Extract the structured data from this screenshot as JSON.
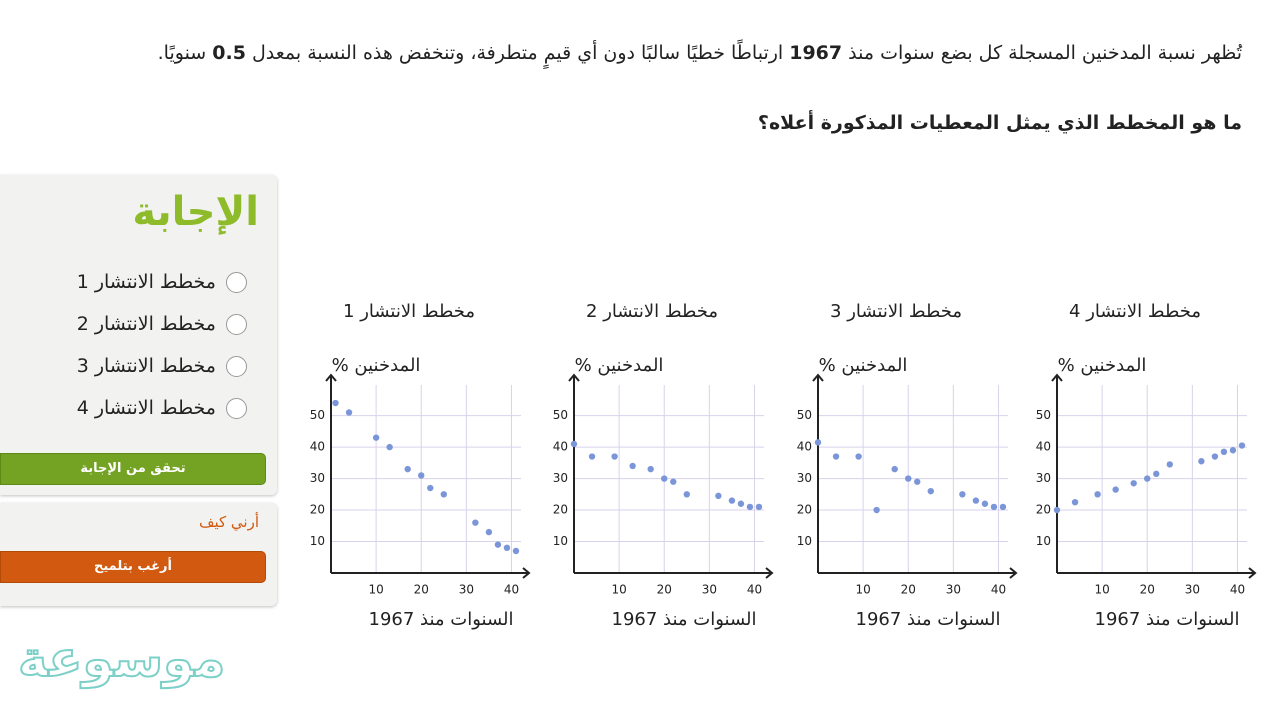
{
  "question": {
    "text_parts": [
      "تُظهر نسبة المدخنين المسجلة كل بضع سنوات منذ ",
      "1967",
      " ارتباطًا خطيًا سالبًا دون أي قيمٍ متطرفة، وتنخفض هذه النسبة بمعدل ",
      "0.5",
      " سنويًا."
    ],
    "prompt": "ما هو المخطط الذي يمثل المعطيات المذكورة أعلاه؟"
  },
  "answer_panel": {
    "title": "الإجابة",
    "options": [
      "مخطط الانتشار 1",
      "مخطط الانتشار 2",
      "مخطط الانتشار 3",
      "مخطط الانتشار 4"
    ],
    "check_button": "تحقق من الإجابة",
    "show_me": "أرني كيف",
    "hint_button": "أرغب بتلميح"
  },
  "watermark": "موسوعة",
  "chart_data": [
    {
      "type": "scatter",
      "title": "مخطط الانتشار 1",
      "y_label": "% المدخنين",
      "x_label": "السنوات منذ 1967",
      "color": "#7b96d8",
      "x": [
        1,
        4,
        10,
        13,
        17,
        20,
        22,
        25,
        32,
        35,
        37,
        39,
        41
      ],
      "values": [
        54,
        51,
        43,
        40,
        33,
        31,
        27,
        25,
        16,
        13,
        9,
        8,
        7
      ],
      "xlim": [
        0,
        43
      ],
      "ylim": [
        0,
        61
      ],
      "xticks": [
        10,
        20,
        30,
        40
      ],
      "yticks": [
        10,
        20,
        30,
        40,
        50
      ],
      "grid": true
    },
    {
      "type": "scatter",
      "title": "مخطط الانتشار 2",
      "y_label": "% المدخنين",
      "x_label": "السنوات منذ 1967",
      "color": "#7b96d8",
      "x": [
        0,
        4,
        9,
        13,
        17,
        20,
        22,
        25,
        32,
        35,
        37,
        39,
        41
      ],
      "values": [
        41,
        37,
        37,
        34,
        33,
        30,
        29,
        25,
        24.5,
        23,
        22,
        21,
        21
      ],
      "xlim": [
        0,
        43
      ],
      "ylim": [
        0,
        61
      ],
      "xticks": [
        10,
        20,
        30,
        40
      ],
      "yticks": [
        10,
        20,
        30,
        40,
        50
      ],
      "grid": true
    },
    {
      "type": "scatter",
      "title": "مخطط الانتشار 3",
      "y_label": "% المدخنين",
      "x_label": "السنوات منذ 1967",
      "color": "#7b96d8",
      "x": [
        0,
        4,
        9,
        13,
        17,
        20,
        22,
        25,
        32,
        35,
        37,
        39,
        41
      ],
      "values": [
        41.5,
        37,
        37,
        20,
        33,
        30,
        29,
        26,
        25,
        23,
        22,
        21,
        21
      ],
      "xlim": [
        0,
        43
      ],
      "ylim": [
        0,
        61
      ],
      "xticks": [
        10,
        20,
        30,
        40
      ],
      "yticks": [
        10,
        20,
        30,
        40,
        50
      ],
      "grid": true
    },
    {
      "type": "scatter",
      "title": "مخطط الانتشار 4",
      "y_label": "% المدخنين",
      "x_label": "السنوات منذ 1967",
      "color": "#7b96d8",
      "x": [
        0,
        4,
        9,
        13,
        17,
        20,
        22,
        25,
        32,
        35,
        37,
        39,
        41
      ],
      "values": [
        20,
        22.5,
        25,
        26.5,
        28.5,
        30,
        31.5,
        34.5,
        35.5,
        37,
        38.5,
        39,
        40.5
      ],
      "xlim": [
        0,
        43
      ],
      "ylim": [
        0,
        61
      ],
      "xticks": [
        10,
        20,
        30,
        40
      ],
      "yticks": [
        10,
        20,
        30,
        40,
        50
      ],
      "grid": true
    }
  ]
}
